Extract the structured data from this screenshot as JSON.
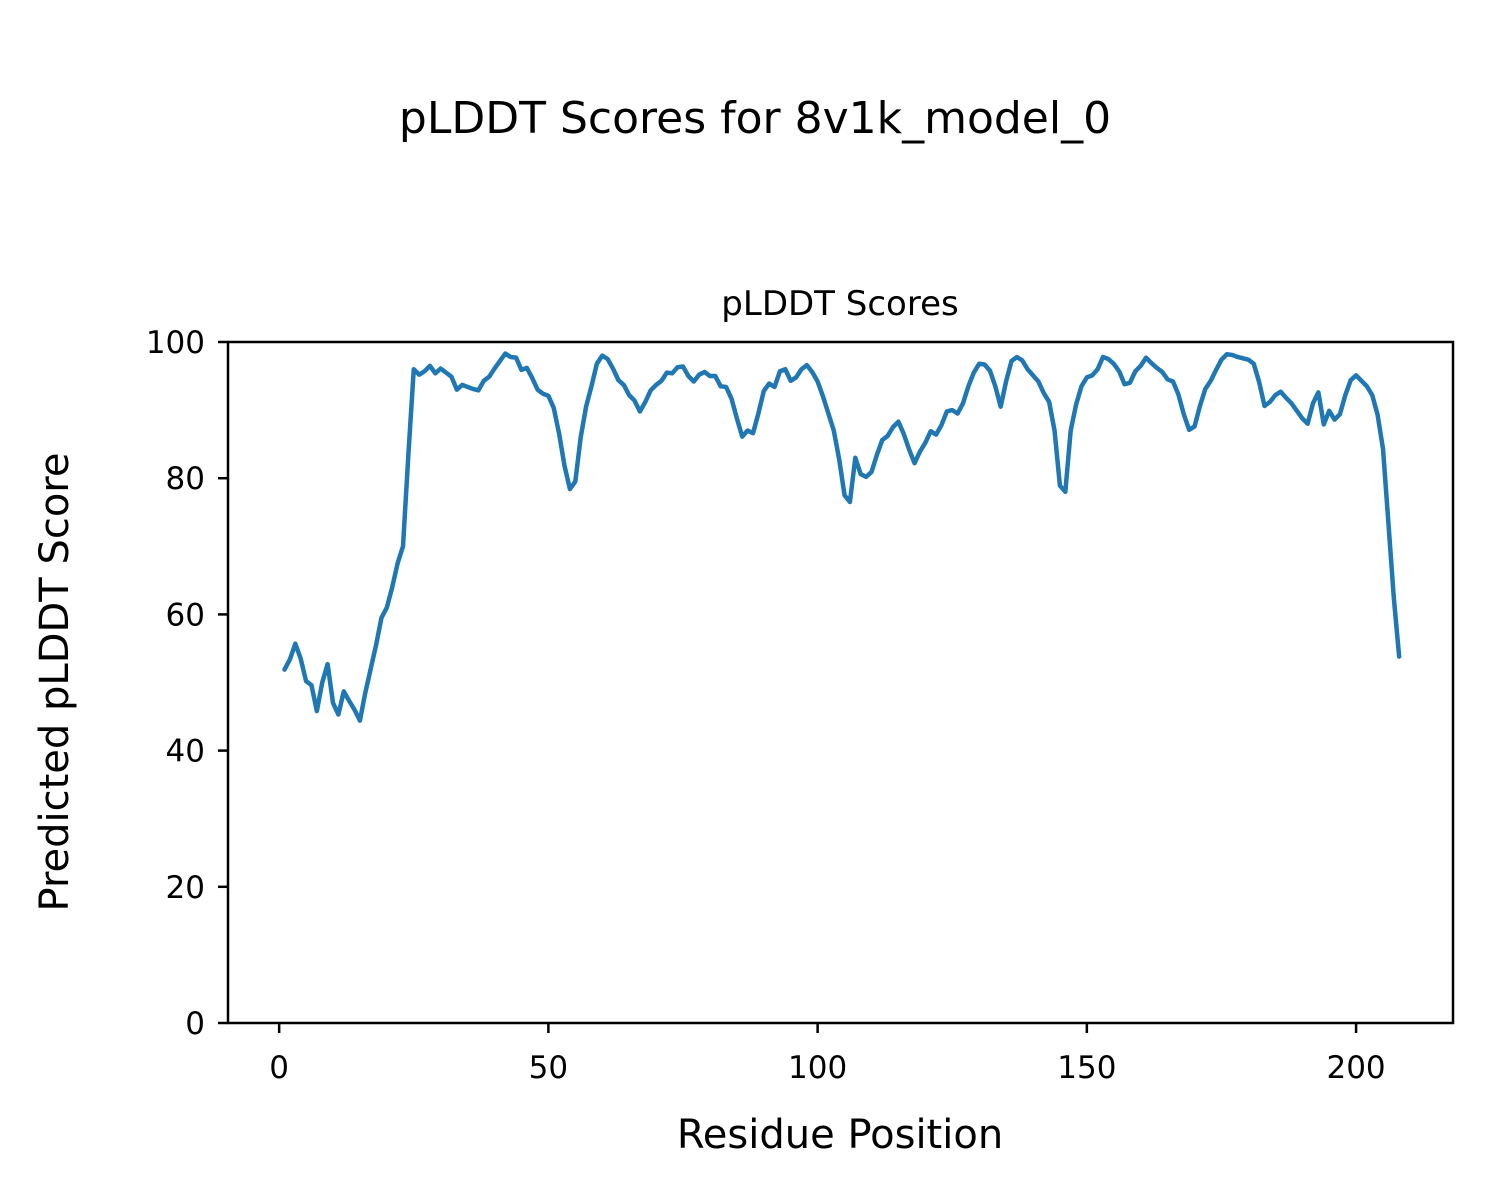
{
  "figure": {
    "suptitle": "pLDDT Scores for 8v1k_model_0",
    "background": "#ffffff"
  },
  "chart_data": {
    "type": "line",
    "title": "pLDDT Scores",
    "xlabel": "Residue Position",
    "ylabel": "Predicted pLDDT Score",
    "xlim": [
      -9.5,
      218
    ],
    "ylim": [
      0,
      100
    ],
    "xticks": [
      0,
      50,
      100,
      150,
      200
    ],
    "yticks": [
      0,
      20,
      40,
      60,
      80,
      100
    ],
    "grid": false,
    "legend": "none",
    "line_color": "#1f77b4",
    "line_width": 4.5,
    "series_name": "pLDDT",
    "x_start": 1,
    "x_step": 1,
    "values": [
      51.9,
      53.4,
      55.7,
      53.5,
      50.2,
      49.6,
      45.8,
      50.0,
      52.7,
      47.0,
      45.3,
      48.7,
      47.3,
      46.0,
      44.4,
      48.5,
      52.0,
      55.5,
      59.5,
      61.0,
      64.0,
      67.5,
      70.0,
      83.5,
      96.0,
      95.2,
      95.7,
      96.5,
      95.4,
      96.1,
      95.5,
      94.9,
      93.0,
      93.7,
      93.4,
      93.1,
      92.9,
      94.3,
      94.9,
      96.1,
      97.2,
      98.3,
      97.8,
      97.7,
      95.9,
      96.2,
      94.7,
      93.0,
      92.4,
      92.1,
      90.3,
      86.5,
      81.8,
      78.4,
      79.5,
      86.0,
      90.5,
      93.5,
      96.8,
      98.0,
      97.5,
      96.1,
      94.4,
      93.7,
      92.2,
      91.4,
      89.8,
      91.2,
      92.9,
      93.7,
      94.3,
      95.5,
      95.4,
      96.3,
      96.4,
      95.0,
      94.2,
      95.2,
      95.6,
      95.0,
      95.0,
      93.5,
      93.4,
      91.7,
      88.8,
      86.1,
      87.0,
      86.6,
      89.5,
      92.8,
      93.9,
      93.4,
      95.7,
      96.0,
      94.3,
      94.8,
      96.0,
      96.6,
      95.6,
      94.2,
      92.0,
      89.5,
      87.0,
      82.8,
      77.5,
      76.5,
      83.0,
      80.6,
      80.2,
      80.9,
      83.4,
      85.6,
      86.2,
      87.5,
      88.3,
      86.5,
      84.2,
      82.2,
      83.9,
      85.2,
      86.9,
      86.4,
      87.8,
      89.8,
      90.0,
      89.5,
      91.0,
      93.5,
      95.5,
      96.8,
      96.7,
      95.8,
      93.5,
      90.5,
      94.2,
      97.2,
      97.8,
      97.3,
      96.0,
      95.1,
      94.2,
      92.5,
      91.2,
      87.0,
      78.9,
      78.0,
      87.0,
      90.8,
      93.5,
      94.8,
      95.1,
      96.0,
      97.8,
      97.5,
      96.8,
      95.7,
      93.8,
      94.0,
      95.7,
      96.5,
      97.7,
      96.9,
      96.2,
      95.6,
      94.5,
      94.2,
      92.3,
      89.4,
      87.1,
      87.6,
      90.6,
      93.1,
      94.3,
      95.9,
      97.4,
      98.2,
      98.1,
      97.8,
      97.6,
      97.4,
      96.8,
      94.1,
      90.6,
      91.2,
      92.2,
      92.7,
      91.8,
      91.0,
      89.9,
      88.8,
      88.0,
      91.0,
      92.6,
      87.9,
      89.9,
      88.6,
      89.4,
      92.2,
      94.4,
      95.1,
      94.3,
      93.5,
      92.2,
      89.3,
      84.3,
      73.5,
      62.5,
      53.8
    ]
  }
}
